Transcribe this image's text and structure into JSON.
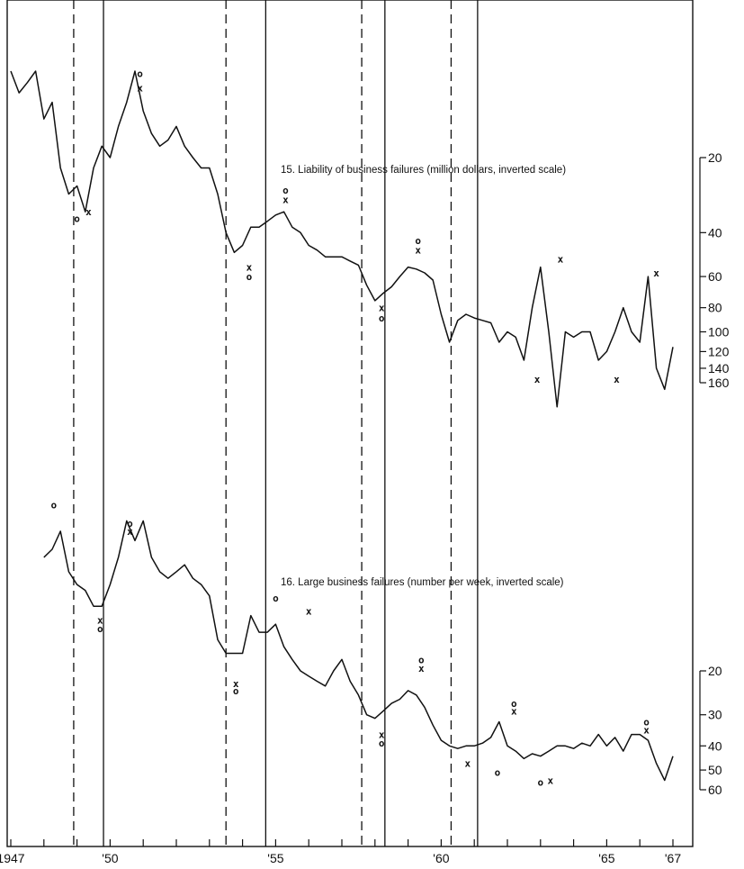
{
  "chart_data": [
    {
      "type": "line",
      "title": "15. Liability of business failures (million dollars, inverted scale)",
      "inverted": true,
      "log_scale": true,
      "yticks": [
        20,
        40,
        60,
        80,
        100,
        120,
        140,
        160
      ],
      "ylim": [
        15,
        300
      ],
      "x": [
        1947.0,
        1947.25,
        1947.5,
        1947.75,
        1948.0,
        1948.25,
        1948.5,
        1948.75,
        1949.0,
        1949.25,
        1949.5,
        1949.75,
        1950.0,
        1950.25,
        1950.5,
        1950.75,
        1951.0,
        1951.25,
        1951.5,
        1951.75,
        1952.0,
        1952.25,
        1952.5,
        1952.75,
        1953.0,
        1953.25,
        1953.5,
        1953.75,
        1954.0,
        1954.25,
        1954.5,
        1954.75,
        1955.0,
        1955.25,
        1955.5,
        1955.75,
        1956.0,
        1956.25,
        1956.5,
        1956.75,
        1957.0,
        1957.25,
        1957.5,
        1957.75,
        1958.0,
        1958.25,
        1958.5,
        1958.75,
        1959.0,
        1959.25,
        1959.5,
        1959.75,
        1960.0,
        1960.25,
        1960.5,
        1960.75,
        1961.0,
        1961.25,
        1961.5,
        1961.75,
        1962.0,
        1962.25,
        1962.5,
        1962.75,
        1963.0,
        1963.25,
        1963.5,
        1963.75,
        1964.0,
        1964.25,
        1964.5,
        1964.75,
        1965.0,
        1965.25,
        1965.5,
        1965.75,
        1966.0,
        1966.25,
        1966.5,
        1966.75,
        1967.0
      ],
      "values": [
        9,
        11,
        10,
        9,
        14,
        12,
        22,
        28,
        26,
        33,
        22,
        18,
        20,
        15,
        12,
        9,
        13,
        16,
        18,
        17,
        15,
        18,
        20,
        22,
        22,
        28,
        40,
        48,
        45,
        38,
        38,
        36,
        34,
        33,
        38,
        40,
        45,
        47,
        50,
        50,
        50,
        52,
        54,
        65,
        75,
        70,
        66,
        60,
        55,
        56,
        58,
        62,
        85,
        110,
        90,
        85,
        88,
        90,
        92,
        110,
        100,
        105,
        130,
        80,
        55,
        100,
        200,
        100,
        105,
        100,
        100,
        130,
        120,
        100,
        80,
        100,
        110,
        60,
        140,
        170,
        115
      ]
    },
    {
      "type": "line",
      "title": "16. Large business failures (number per week, inverted scale)",
      "inverted": true,
      "log_scale": true,
      "yticks": [
        20,
        30,
        40,
        50,
        60
      ],
      "ylim": [
        5,
        80
      ],
      "x": [
        1948.0,
        1948.25,
        1948.5,
        1948.75,
        1949.0,
        1949.25,
        1949.5,
        1949.75,
        1950.0,
        1950.25,
        1950.5,
        1950.75,
        1951.0,
        1951.25,
        1951.5,
        1951.75,
        1952.0,
        1952.25,
        1952.5,
        1952.75,
        1953.0,
        1953.25,
        1953.5,
        1953.75,
        1954.0,
        1954.25,
        1954.5,
        1954.75,
        1955.0,
        1955.25,
        1955.5,
        1955.75,
        1956.0,
        1956.25,
        1956.5,
        1956.75,
        1957.0,
        1957.25,
        1957.5,
        1957.75,
        1958.0,
        1958.25,
        1958.5,
        1958.75,
        1959.0,
        1959.25,
        1959.5,
        1959.75,
        1960.0,
        1960.25,
        1960.5,
        1960.75,
        1961.0,
        1961.25,
        1961.5,
        1961.75,
        1962.0,
        1962.25,
        1962.5,
        1962.75,
        1963.0,
        1963.25,
        1963.5,
        1963.75,
        1964.0,
        1964.25,
        1964.5,
        1964.75,
        1965.0,
        1965.25,
        1965.5,
        1965.75,
        1966.0,
        1966.25,
        1966.5,
        1966.75,
        1967.0
      ],
      "values": [
        7,
        6.5,
        5.5,
        8,
        9,
        9.5,
        11,
        11,
        9,
        7,
        5,
        6,
        5,
        7,
        8,
        8.5,
        8,
        7.5,
        8.5,
        9,
        10,
        15,
        17,
        17,
        17,
        12,
        14,
        14,
        13,
        16,
        18,
        20,
        21,
        22,
        23,
        20,
        18,
        22,
        25,
        30,
        31,
        29,
        27,
        26,
        24,
        25,
        28,
        33,
        38,
        40,
        41,
        40,
        40,
        39,
        37,
        32,
        40,
        42,
        45,
        43,
        44,
        42,
        40,
        40,
        41,
        39,
        40,
        36,
        40,
        37,
        42,
        36,
        36,
        38,
        47,
        55,
        44
      ]
    }
  ],
  "cycle_lines": {
    "peaks": [
      1948.9,
      1953.5,
      1957.6,
      1960.3
    ],
    "troughs": [
      1949.8,
      1954.7,
      1958.3,
      1961.1
    ]
  },
  "x_axis": {
    "tick_years": [
      1947,
      1948,
      1949,
      1950,
      1951,
      1952,
      1953,
      1954,
      1955,
      1956,
      1957,
      1958,
      1959,
      1960,
      1961,
      1962,
      1963,
      1964,
      1965,
      1966,
      1967
    ],
    "labels": [
      {
        "year": 1947,
        "text": "1947"
      },
      {
        "year": 1950,
        "text": "'50"
      },
      {
        "year": 1955,
        "text": "'55"
      },
      {
        "year": 1960,
        "text": "'60"
      },
      {
        "year": 1965,
        "text": "'65"
      },
      {
        "year": 1967,
        "text": "'67"
      }
    ]
  },
  "markers": [
    {
      "chart": 0,
      "x": 1950.9,
      "value": 9.2,
      "text": "o"
    },
    {
      "chart": 0,
      "x": 1950.9,
      "value": 10.5,
      "text": "x"
    },
    {
      "chart": 0,
      "x": 1949.0,
      "value": 35,
      "text": "o"
    },
    {
      "chart": 0,
      "x": 1949.35,
      "value": 33,
      "text": "x"
    },
    {
      "chart": 0,
      "x": 1954.2,
      "value": 55,
      "text": "x"
    },
    {
      "chart": 0,
      "x": 1954.2,
      "value": 60,
      "text": "o"
    },
    {
      "chart": 0,
      "x": 1955.3,
      "value": 27,
      "text": "o"
    },
    {
      "chart": 0,
      "x": 1955.3,
      "value": 29.5,
      "text": "x"
    },
    {
      "chart": 0,
      "x": 1958.2,
      "value": 80,
      "text": "x"
    },
    {
      "chart": 0,
      "x": 1958.2,
      "value": 88,
      "text": "o"
    },
    {
      "chart": 0,
      "x": 1959.3,
      "value": 43,
      "text": "o"
    },
    {
      "chart": 0,
      "x": 1959.3,
      "value": 47,
      "text": "x"
    },
    {
      "chart": 0,
      "x": 1962.9,
      "value": 155,
      "text": "x"
    },
    {
      "chart": 0,
      "x": 1963.6,
      "value": 51,
      "text": "x"
    },
    {
      "chart": 0,
      "x": 1965.3,
      "value": 155,
      "text": "x"
    },
    {
      "chart": 0,
      "x": 1966.5,
      "value": 58,
      "text": "x"
    },
    {
      "chart": 1,
      "x": 1948.3,
      "value": 4.3,
      "text": "o"
    },
    {
      "chart": 1,
      "x": 1949.7,
      "value": 12.5,
      "text": "x"
    },
    {
      "chart": 1,
      "x": 1949.7,
      "value": 13.5,
      "text": "o"
    },
    {
      "chart": 1,
      "x": 1950.6,
      "value": 5.1,
      "text": "o"
    },
    {
      "chart": 1,
      "x": 1950.6,
      "value": 5.5,
      "text": "x"
    },
    {
      "chart": 1,
      "x": 1953.8,
      "value": 22.5,
      "text": "x"
    },
    {
      "chart": 1,
      "x": 1953.8,
      "value": 24,
      "text": "o"
    },
    {
      "chart": 1,
      "x": 1955.0,
      "value": 10.2,
      "text": "o"
    },
    {
      "chart": 1,
      "x": 1956.0,
      "value": 11.5,
      "text": "x"
    },
    {
      "chart": 1,
      "x": 1958.2,
      "value": 36,
      "text": "x"
    },
    {
      "chart": 1,
      "x": 1958.2,
      "value": 39,
      "text": "o"
    },
    {
      "chart": 1,
      "x": 1959.4,
      "value": 18,
      "text": "o"
    },
    {
      "chart": 1,
      "x": 1959.4,
      "value": 19.5,
      "text": "x"
    },
    {
      "chart": 1,
      "x": 1960.8,
      "value": 47,
      "text": "x"
    },
    {
      "chart": 1,
      "x": 1961.7,
      "value": 51,
      "text": "o"
    },
    {
      "chart": 1,
      "x": 1962.2,
      "value": 27,
      "text": "o"
    },
    {
      "chart": 1,
      "x": 1962.2,
      "value": 29,
      "text": "x"
    },
    {
      "chart": 1,
      "x": 1963.0,
      "value": 56,
      "text": "o"
    },
    {
      "chart": 1,
      "x": 1963.3,
      "value": 55,
      "text": "x"
    },
    {
      "chart": 1,
      "x": 1966.2,
      "value": 32,
      "text": "o"
    },
    {
      "chart": 1,
      "x": 1966.2,
      "value": 34.5,
      "text": "x"
    }
  ]
}
